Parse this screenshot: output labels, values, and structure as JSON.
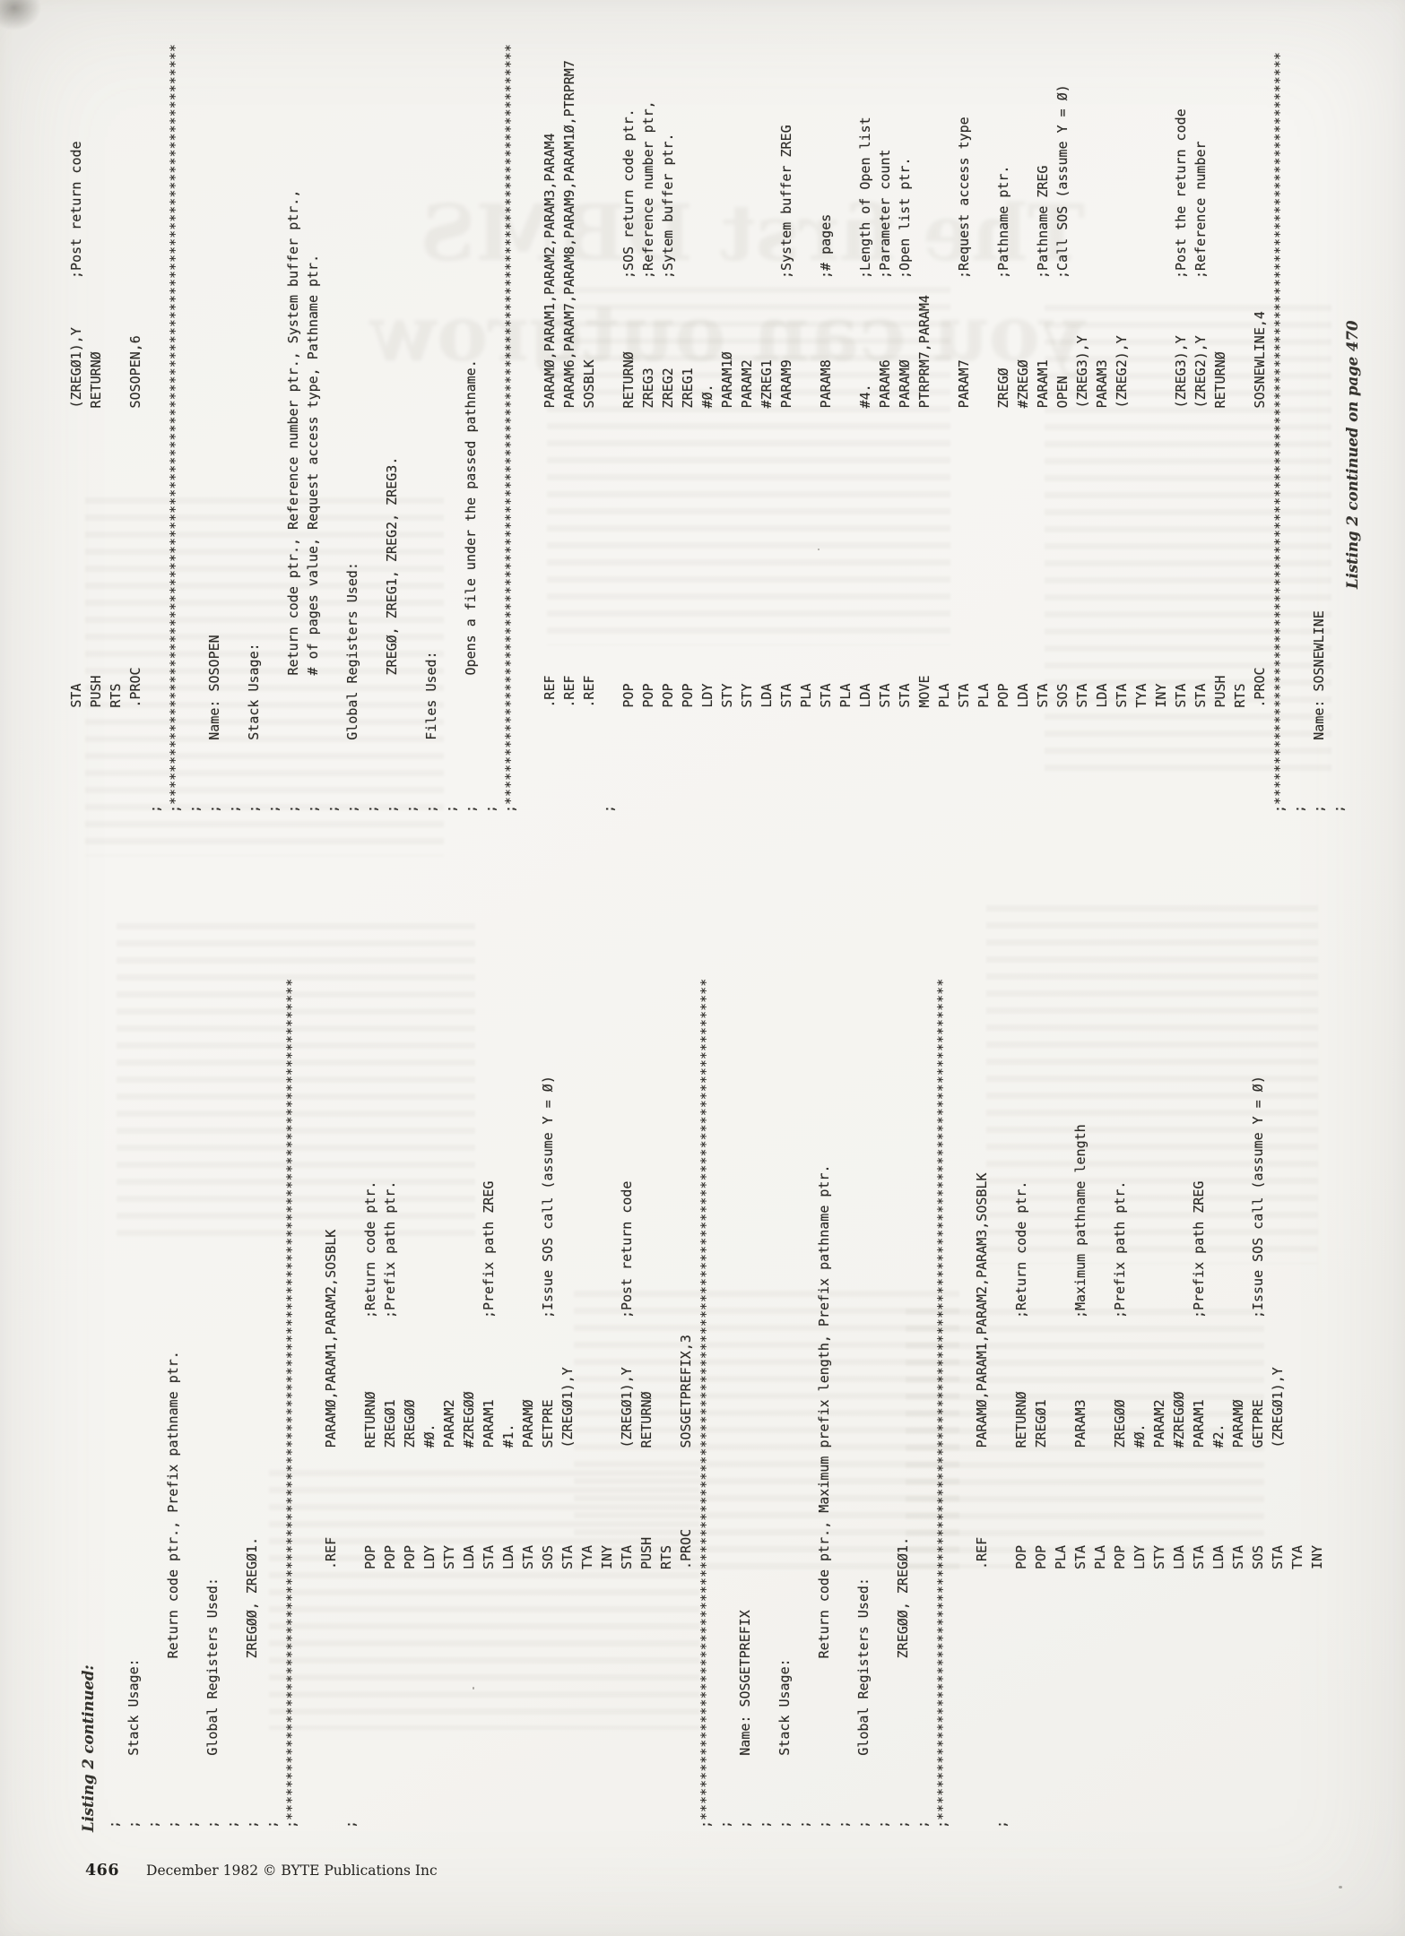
{
  "page": {
    "kind": "scanned magazine listing page",
    "footer": {
      "folio": "466",
      "credit": "December 1982 © BYTE Publications Inc"
    },
    "ink_color": "#2c2a26",
    "paper_color": "#f4f3ef"
  },
  "listing": {
    "caption_start": "Listing 2 continued:",
    "caption_continuation": "Listing 2 continued on page 470",
    "left_column_lines": [
      "",
      ";",
      ";        Stack Usage:",
      ";",
      ";                    Return code ptr., Prefix pathname ptr.",
      ";",
      ";        Global Registers Used:",
      ";",
      ";                    ZREGØØ, ZREGØ1.",
      ";",
      ";********************************************************************************************************",
      "",
      "                                .REF           PARAMØ,PARAM1,PARAM2,SOSBLK",
      ";",
      "                                POP            RETURNØ         ;Return code ptr.",
      "                                POP            ZREGØ1          ;Prefix path ptr.",
      "                                POP            ZREGØØ",
      "                                LDY            #Ø.",
      "                                STY            PARAM2",
      "                                LDA            #ZREGØØ",
      "                                STA            PARAM1          ;Prefix path ZREG",
      "                                LDA            #1.",
      "                                STA            PARAMØ",
      "                                SOS            SETPRE          ;Issue SOS call (assume Y = Ø)",
      "                                STA            (ZREGØ1),Y",
      "                                TYA",
      "                                INY",
      "                                STA            (ZREGØ1),Y      ;Post return code",
      "                                PUSH           RETURNØ",
      "                                RTS",
      "                                .PROC          SOSGETPREFIX,3",
      ";********************************************************************************************************",
      ";",
      ";        Name: SOSGETPREFIX",
      ";",
      ";        Stack Usage:",
      ";",
      ";                    Return code ptr., Maximum prefix length, Prefix pathname ptr.",
      ";",
      ";        Global Registers Used:",
      ";",
      ";                    ZREGØØ, ZREGØ1.",
      ";",
      ";********************************************************************************************************",
      "",
      "                                .REF           PARAMØ,PARAM1,PARAM2,PARAM3,SOSBLK",
      ";",
      "                                POP            RETURNØ         ;Return code ptr.",
      "                                POP            ZREGØ1",
      "                                PLA",
      "                                STA            PARAM3          ;Maximum pathname length",
      "                                PLA",
      "                                POP            ZREGØØ          ;Prefix path ptr.",
      "                                LDY            #Ø.",
      "                                STY            PARAM2",
      "                                LDA            #ZREGØØ",
      "                                STA            PARAM1          ;Prefix path ZREG",
      "                                LDA            #2.",
      "                                STA            PARAMØ",
      "                                SOS            GETPRE          ;Issue SOS call (assume Y = Ø)",
      "                                STA            (ZREGØ1),Y",
      "                                TYA",
      "                                INY"
    ],
    "right_column_lines": [
      "             STA                                  (ZREGØ1),Y      ;Post return code",
      "             PUSH                                 RETURNØ",
      "             RTS",
      "             .PROC                                SOSOPEN,6",
      ";",
      ";**********************************************************************************************",
      ";",
      ";        Name: SOSOPEN",
      ";",
      ";        Stack Usage:",
      ";",
      ";                Return code ptr., Reference number ptr., System buffer ptr.,",
      ";                # of pages value, Request access type, Pathname ptr.",
      ";",
      ";        Global Registers Used:",
      ";",
      ";                ZREGØ, ZREG1, ZREG2, ZREG3.",
      ";",
      ";        Files Used:",
      ";",
      ";                Opens a file under the passed pathname.",
      ";",
      ";**********************************************************************************************",
      "",
      "             .REF                                 PARAMØ,PARAM1,PARAM2,PARAM3,PARAM4",
      "             .REF                                 PARAM6,PARAM7,PARAM8,PARAM9,PARAM1Ø,PTRPRM7",
      "             .REF                                 SOSBLK",
      ";",
      "             POP                                  RETURNØ         ;SOS return code ptr.",
      "             POP                                  ZREG3           ;Reference number ptr,",
      "             POP                                  ZREG2           ;Sytem buffer ptr.",
      "             POP                                  ZREG1",
      "             LDY                                  #Ø.",
      "             STY                                  PARAM1Ø",
      "             STY                                  PARAM2",
      "             LDA                                  #ZREG1",
      "             STA                                  PARAM9          ;System buffer ZREG",
      "             PLA",
      "             STA                                  PARAM8          ;# pages",
      "             PLA",
      "             LDA                                  #4.             ;Length of Open list",
      "             STA                                  PARAM6          ;Parameter count",
      "             STA                                  PARAMØ          ;Open list ptr.",
      "             MOVE                                 PTRPRM7,PARAM4",
      "             PLA",
      "             STA                                  PARAM7          ;Request access type",
      "             PLA",
      "             POP                                  ZREGØ           ;Pathname ptr.",
      "             LDA                                  #ZREGØ",
      "             STA                                  PARAM1          ;Pathname ZREG",
      "             SOS                                  OPEN            ;Call SOS (assume Y = Ø)",
      "             STA                                  (ZREG3),Y",
      "             LDA                                  PARAM3",
      "             STA                                  (ZREG2),Y",
      "             TYA",
      "             INY",
      "             STA                                  (ZREG3),Y       ;Post the return code",
      "             STA                                  (ZREG2),Y       ;Reference number",
      "             PUSH                                 RETURNØ",
      "             RTS",
      "             .PROC                                SOSNEWLINE,4",
      ";*********************************************************************************************",
      ";",
      ";        Name: SOSNEWLINE",
      ";",
      ""
    ]
  },
  "ghost": {
    "headline_line1": "The first DBMS",
    "headline_line2": "you can outgrow"
  }
}
